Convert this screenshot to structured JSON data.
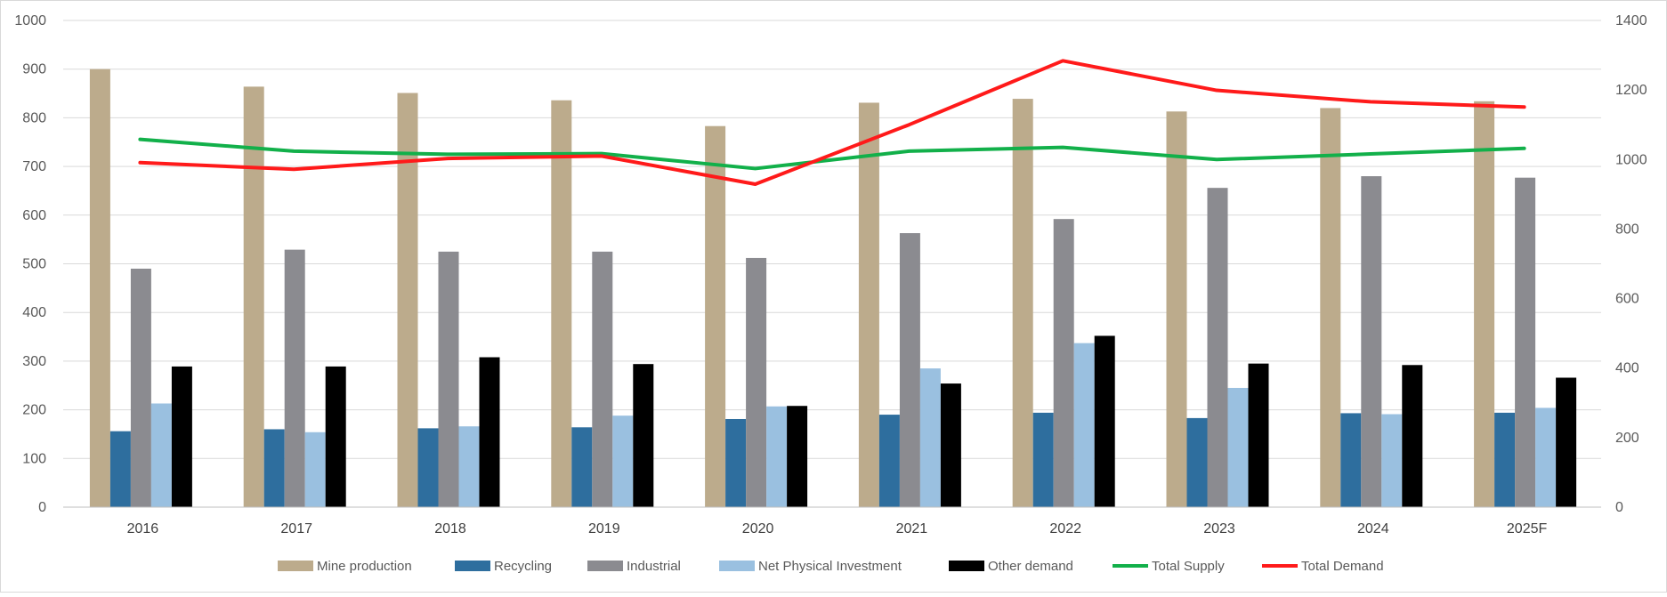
{
  "chart_data": {
    "type": "bar",
    "title": "",
    "xlabel": "",
    "ylabel": "",
    "categories": [
      "2016",
      "2017",
      "2018",
      "2019",
      "2020",
      "2021",
      "2022",
      "2023",
      "2024",
      "2025F"
    ],
    "y_left": {
      "min": 0,
      "max": 1000,
      "ticks": [
        0,
        100,
        200,
        300,
        400,
        500,
        600,
        700,
        800,
        900,
        1000
      ]
    },
    "y_right": {
      "min": 0,
      "max": 1400,
      "ticks": [
        0,
        200,
        400,
        600,
        800,
        1000,
        1200,
        1400
      ]
    },
    "grid": true,
    "legend_position": "bottom",
    "bar_series": [
      {
        "name": "Mine production",
        "color": "#bcab8c",
        "values": [
          900,
          864,
          851,
          836,
          783,
          831,
          839,
          813,
          820,
          834
        ]
      },
      {
        "name": "Recycling",
        "color": "#2e6e9e",
        "values": [
          156,
          160,
          162,
          164,
          181,
          190,
          194,
          183,
          193,
          194
        ]
      },
      {
        "name": "Industrial",
        "color": "#8b8b90",
        "values": [
          490,
          529,
          525,
          525,
          512,
          563,
          592,
          656,
          680,
          677
        ]
      },
      {
        "name": "Net Physical Investment",
        "color": "#9ac0e0",
        "values": [
          213,
          154,
          166,
          188,
          207,
          285,
          337,
          245,
          191,
          204
        ]
      },
      {
        "name": "Other demand",
        "color": "#000000",
        "values": [
          289,
          289,
          308,
          294,
          208,
          254,
          352,
          295,
          292,
          266
        ]
      }
    ],
    "line_series": [
      {
        "name": "Total Supply",
        "color": "#12b04a",
        "axis": "right",
        "values": [
          1058,
          1024,
          1015,
          1017,
          974,
          1024,
          1035,
          1000,
          1016,
          1032
        ]
      },
      {
        "name": "Total Demand",
        "color": "#ff1a1a",
        "axis": "right",
        "values": [
          991,
          972,
          1003,
          1010,
          929,
          1100,
          1284,
          1199,
          1166,
          1151
        ]
      }
    ]
  }
}
